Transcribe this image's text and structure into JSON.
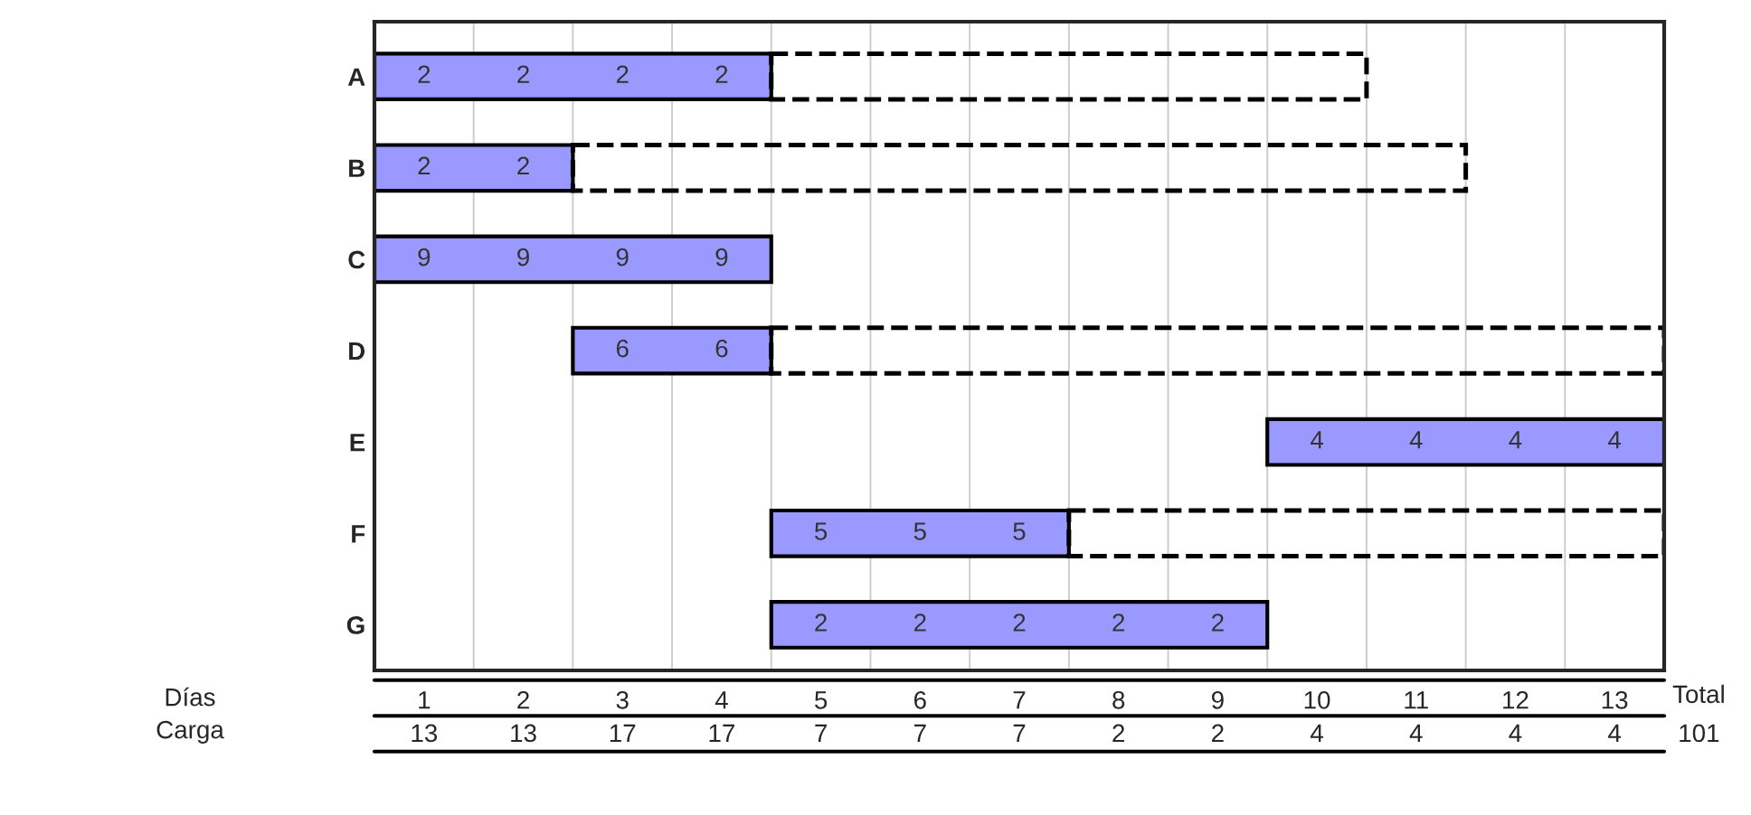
{
  "chart_data": {
    "type": "bar",
    "orientation": "horizontal",
    "categories": [
      "A",
      "B",
      "C",
      "D",
      "E",
      "F",
      "G"
    ],
    "series": [
      {
        "color": "#9999ff",
        "base": [
          0,
          0,
          0,
          2,
          9,
          4,
          4
        ],
        "values": [
          4,
          2,
          4,
          2,
          4,
          3,
          5
        ]
      },
      {
        "color": "#000000",
        "line_style": "dashed",
        "base": [
          4,
          2,
          null,
          4,
          null,
          7,
          null
        ],
        "values": [
          6,
          9,
          null,
          9,
          null,
          6,
          null
        ]
      }
    ],
    "xlim": [
      0,
      13
    ],
    "xticks": [
      {
        "value": 0.5,
        "label": "1"
      },
      {
        "value": 1.5,
        "label": "2"
      },
      {
        "value": 2.5,
        "label": "3"
      },
      {
        "value": 3.5,
        "label": "4"
      },
      {
        "value": 4.5,
        "label": "5"
      },
      {
        "value": 5.5,
        "label": "6"
      },
      {
        "value": 6.5,
        "label": "7"
      },
      {
        "value": 7.5,
        "label": "8"
      },
      {
        "value": 8.5,
        "label": "9"
      },
      {
        "value": 9.5,
        "label": "10"
      },
      {
        "value": 10.5,
        "label": "11"
      },
      {
        "value": 11.5,
        "label": "12"
      },
      {
        "value": 12.5,
        "label": "13"
      }
    ],
    "annotations": [
      "2",
      "2",
      "2",
      "2",
      "2",
      "2",
      "9",
      "9",
      "9",
      "9",
      "6",
      "6",
      "4",
      "4",
      "4",
      "4",
      "5",
      "5",
      "5",
      "2",
      "2",
      "2",
      "2",
      "2",
      "Días",
      "Carga",
      "13",
      "13",
      "17",
      "17",
      "7",
      "7",
      "7",
      "2",
      "2",
      "4",
      "4",
      "4",
      "4",
      "Total",
      "101"
    ]
  }
}
